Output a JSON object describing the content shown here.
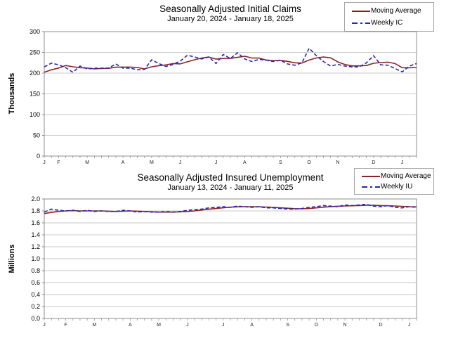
{
  "page": {
    "background": "#ffffff"
  },
  "chart_data": [
    {
      "type": "line",
      "title": "Seasonally Adjusted Initial Claims",
      "subtitle": "January 20, 2024 - January 18, 2025",
      "ylabel": "Thousands",
      "ylim": [
        0,
        300
      ],
      "yticks": [
        0,
        50,
        100,
        150,
        200,
        250,
        300
      ],
      "ytick_labels": [
        "0",
        "50",
        "100",
        "150",
        "200",
        "250",
        "300"
      ],
      "month_labels": [
        "J",
        "F",
        "M",
        "A",
        "M",
        "J",
        "J",
        "A",
        "S",
        "O",
        "N",
        "D",
        "J"
      ],
      "weeks_per_month": [
        2,
        4,
        5,
        4,
        4,
        5,
        4,
        5,
        4,
        4,
        5,
        4,
        3
      ],
      "x_unit": "week",
      "grid": "horizontal",
      "legend_position": "top-right",
      "axis_color": "#8c8c8c",
      "gridline_color": "#c9c9c9",
      "series": [
        {
          "name": "Moving Average",
          "color": "#8b2323",
          "dash": "solid",
          "width": 1.6,
          "values": [
            202,
            208,
            212.25,
            218.25,
            215.25,
            213,
            212.25,
            210.25,
            211.25,
            211.5,
            214.25,
            214.5,
            214.5,
            213.5,
            210.25,
            215.25,
            218,
            219.75,
            223,
            222.25,
            227.25,
            232.25,
            236.25,
            238.75,
            233.75,
            235.25,
            235.5,
            238,
            240.75,
            236.5,
            236.25,
            231.5,
            230,
            230.75,
            228.25,
            225,
            224.25,
            231.5,
            236.5,
            238.75,
            236.75,
            227,
            220.75,
            217.5,
            217.5,
            218.25,
            223.75,
            225.5,
            226.5,
            223,
            213,
            212.75,
            213.5
          ]
        },
        {
          "name": "Weekly IC",
          "color": "#2424c8",
          "dash": "dashed",
          "width": 1.6,
          "values": [
            215,
            224,
            220,
            213,
            202,
            217,
            210,
            212,
            212,
            212,
            222,
            212,
            212,
            208,
            209,
            232,
            223,
            216,
            221,
            229,
            243,
            239,
            234,
            239,
            223,
            245,
            235,
            249,
            234,
            228,
            233,
            231,
            228,
            231,
            222,
            219,
            225,
            260,
            242,
            228,
            217,
            221,
            217,
            215,
            215,
            225,
            242,
            220,
            219,
            211,
            203,
            217,
            223
          ]
        }
      ]
    },
    {
      "type": "line",
      "title": "Seasonally Adjusted Insured Unemployment",
      "subtitle": "January 13, 2024 - January 11, 2025",
      "ylabel": "Millions",
      "ylim": [
        0,
        2.0
      ],
      "yticks": [
        0,
        0.2,
        0.4,
        0.6,
        0.8,
        1.0,
        1.2,
        1.4,
        1.6,
        1.8,
        2.0
      ],
      "ytick_labels": [
        "0.0",
        "0.2",
        "0.4",
        "0.6",
        "0.8",
        "1.0",
        "1.2",
        "1.4",
        "1.6",
        "1.8",
        "2.0"
      ],
      "month_labels": [
        "J",
        "F",
        "M",
        "A",
        "M",
        "J",
        "J",
        "A",
        "S",
        "O",
        "N",
        "D",
        "J"
      ],
      "weeks_per_month": [
        3,
        4,
        5,
        4,
        4,
        5,
        4,
        5,
        4,
        4,
        5,
        4,
        2
      ],
      "x_unit": "week",
      "grid": "horizontal",
      "legend_position": "top-right",
      "axis_color": "#8c8c8c",
      "gridline_color": "#c9c9c9",
      "series": [
        {
          "name": "Moving Average",
          "color": "#8b2323",
          "dash": "solid",
          "width": 1.6,
          "values": [
            1.755,
            1.775,
            1.79,
            1.8,
            1.805,
            1.8,
            1.8,
            1.8,
            1.8,
            1.795,
            1.79,
            1.795,
            1.8,
            1.795,
            1.79,
            1.785,
            1.78,
            1.78,
            1.78,
            1.785,
            1.79,
            1.8,
            1.815,
            1.828,
            1.84,
            1.852,
            1.862,
            1.868,
            1.87,
            1.87,
            1.868,
            1.865,
            1.86,
            1.852,
            1.845,
            1.838,
            1.835,
            1.84,
            1.85,
            1.862,
            1.872,
            1.878,
            1.882,
            1.886,
            1.89,
            1.895,
            1.895,
            1.89,
            1.886,
            1.882,
            1.876,
            1.87,
            1.868
          ]
        },
        {
          "name": "Weekly IU",
          "color": "#2424c8",
          "dash": "dashed",
          "width": 1.6,
          "values": [
            1.78,
            1.83,
            1.81,
            1.8,
            1.81,
            1.79,
            1.81,
            1.79,
            1.8,
            1.79,
            1.79,
            1.81,
            1.8,
            1.78,
            1.79,
            1.78,
            1.78,
            1.79,
            1.78,
            1.79,
            1.81,
            1.82,
            1.83,
            1.85,
            1.86,
            1.87,
            1.86,
            1.88,
            1.87,
            1.86,
            1.87,
            1.85,
            1.85,
            1.84,
            1.83,
            1.83,
            1.84,
            1.86,
            1.87,
            1.89,
            1.88,
            1.87,
            1.9,
            1.89,
            1.9,
            1.91,
            1.88,
            1.87,
            1.89,
            1.86,
            1.85,
            1.87,
            1.86
          ]
        }
      ]
    }
  ]
}
